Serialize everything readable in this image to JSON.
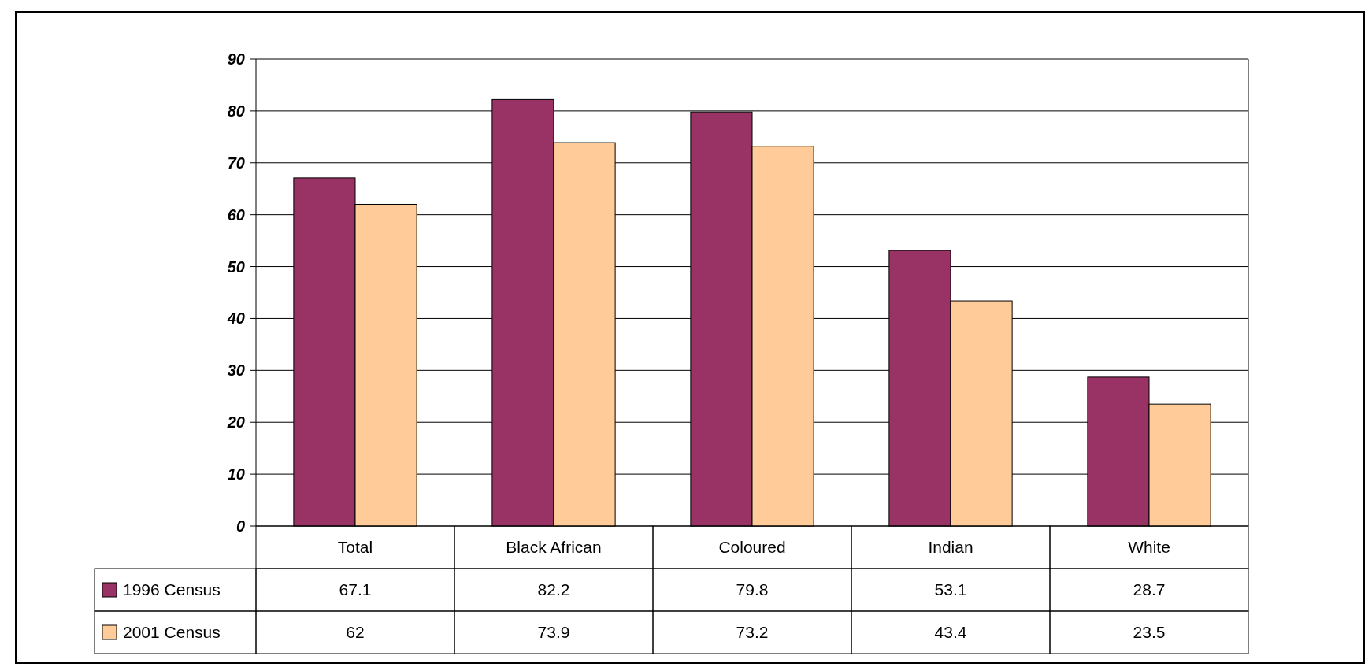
{
  "chart_data": {
    "type": "bar",
    "categories": [
      "Total",
      "Black African",
      "Coloured",
      "Indian",
      "White"
    ],
    "series": [
      {
        "name": "1996 Census",
        "color": "#993366",
        "values": [
          67.1,
          82.2,
          79.8,
          53.1,
          28.7
        ]
      },
      {
        "name": "2001 Census",
        "color": "#ffcc99",
        "values": [
          62,
          73.9,
          73.2,
          43.4,
          23.5
        ]
      }
    ],
    "ylim": [
      0,
      90
    ],
    "yticks": [
      0,
      10,
      20,
      30,
      40,
      50,
      60,
      70,
      80,
      90
    ],
    "grid": "y",
    "legend": "bottom",
    "data_labels": true
  }
}
